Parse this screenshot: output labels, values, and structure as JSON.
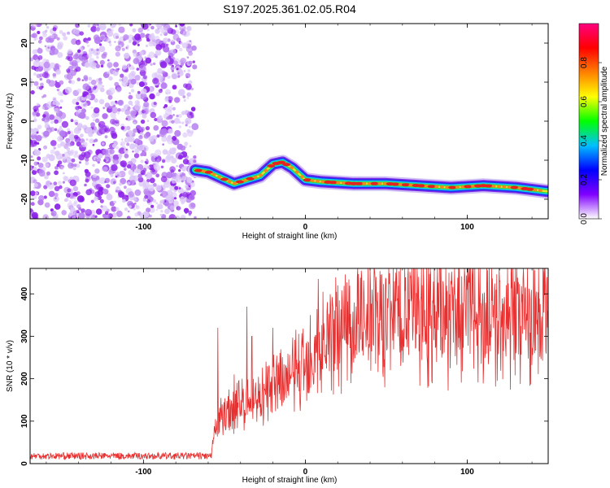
{
  "figure_title": "S197.2025.361.02.05.R04",
  "chart_data": [
    {
      "type": "heatmap",
      "name": "spectrogram",
      "xlabel": "Height of straight line (km)",
      "ylabel": "Frequency (Hz)",
      "xlim": [
        -170,
        150
      ],
      "ylim": [
        -25,
        25
      ],
      "xticks": [
        -100,
        0,
        100
      ],
      "yticks": [
        -20,
        -10,
        0,
        10,
        20
      ],
      "noise_region_end_km": -68,
      "ridge": [
        {
          "x": -68,
          "y": -12.5
        },
        {
          "x": -60,
          "y": -13
        },
        {
          "x": -52,
          "y": -14.5
        },
        {
          "x": -44,
          "y": -16
        },
        {
          "x": -36,
          "y": -15
        },
        {
          "x": -28,
          "y": -14
        },
        {
          "x": -20,
          "y": -11
        },
        {
          "x": -14,
          "y": -10.5
        },
        {
          "x": -8,
          "y": -12
        },
        {
          "x": 0,
          "y": -15
        },
        {
          "x": 10,
          "y": -15.5
        },
        {
          "x": 30,
          "y": -16
        },
        {
          "x": 50,
          "y": -16
        },
        {
          "x": 70,
          "y": -16.5
        },
        {
          "x": 90,
          "y": -17
        },
        {
          "x": 110,
          "y": -16.5
        },
        {
          "x": 130,
          "y": -17
        },
        {
          "x": 150,
          "y": -18
        }
      ],
      "colorbar": {
        "label": "Normalized spectral amplitude",
        "range": [
          0,
          1
        ],
        "ticks": [
          "0.0",
          "0.2",
          "0.4",
          "0.6",
          "0.8"
        ],
        "tick_values": [
          0,
          0.2,
          0.4,
          0.6,
          0.8
        ],
        "colors": [
          "#ffffff",
          "#8000ff",
          "#0000ff",
          "#00c0ff",
          "#00ff00",
          "#ffff00",
          "#ff8000",
          "#ff0000",
          "#ff0080"
        ]
      }
    },
    {
      "type": "line",
      "name": "snr",
      "xlabel": "Height of straight line (km)",
      "ylabel": "SNR (10 * v/v)",
      "xlim": [
        -170,
        150
      ],
      "ylim": [
        0,
        460
      ],
      "xticks": [
        -100,
        0,
        100
      ],
      "yticks": [
        0,
        100,
        200,
        300,
        400
      ],
      "color": "#e83030",
      "envelope": [
        {
          "x": -170,
          "y": 18
        },
        {
          "x": -58,
          "y": 18
        },
        {
          "x": -55,
          "y": 100
        },
        {
          "x": -45,
          "y": 130
        },
        {
          "x": -40,
          "y": 140
        },
        {
          "x": -35,
          "y": 150
        },
        {
          "x": -25,
          "y": 160
        },
        {
          "x": -15,
          "y": 190
        },
        {
          "x": -5,
          "y": 220
        },
        {
          "x": 5,
          "y": 260
        },
        {
          "x": 15,
          "y": 300
        },
        {
          "x": 25,
          "y": 330
        },
        {
          "x": 40,
          "y": 345
        },
        {
          "x": 60,
          "y": 350
        },
        {
          "x": 80,
          "y": 355
        },
        {
          "x": 100,
          "y": 355
        },
        {
          "x": 120,
          "y": 355
        },
        {
          "x": 140,
          "y": 350
        },
        {
          "x": 150,
          "y": 340
        }
      ],
      "spikes": [
        {
          "x": -54,
          "y": 320
        },
        {
          "x": -44,
          "y": 210
        },
        {
          "x": -36,
          "y": 370
        },
        {
          "x": -33,
          "y": 300
        },
        {
          "x": -20,
          "y": 320
        },
        {
          "x": 3,
          "y": 350
        },
        {
          "x": 8,
          "y": 435
        },
        {
          "x": 20,
          "y": 420
        },
        {
          "x": 32,
          "y": 440
        },
        {
          "x": 55,
          "y": 430
        },
        {
          "x": 70,
          "y": 440
        },
        {
          "x": 85,
          "y": 430
        },
        {
          "x": 100,
          "y": 430
        },
        {
          "x": 103,
          "y": 445
        },
        {
          "x": 120,
          "y": 430
        },
        {
          "x": 147,
          "y": 450
        }
      ]
    }
  ]
}
